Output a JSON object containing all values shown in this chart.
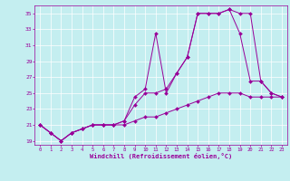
{
  "xlabel": "Windchill (Refroidissement éolien,°C)",
  "bg_color": "#c4eef0",
  "line_color": "#990099",
  "grid_color": "#ffffff",
  "xlim": [
    -0.5,
    23.5
  ],
  "ylim": [
    18.5,
    36.0
  ],
  "yticks": [
    19,
    21,
    23,
    25,
    27,
    29,
    31,
    33,
    35
  ],
  "xticks": [
    0,
    1,
    2,
    3,
    4,
    5,
    6,
    7,
    8,
    9,
    10,
    11,
    12,
    13,
    14,
    15,
    16,
    17,
    18,
    19,
    20,
    21,
    22,
    23
  ],
  "line1_x": [
    0,
    1,
    2,
    3,
    4,
    5,
    6,
    7,
    8,
    9,
    10,
    11,
    12,
    13,
    14,
    15,
    16,
    17,
    18,
    19,
    20,
    21,
    22,
    23
  ],
  "line1_y": [
    21,
    20,
    19,
    20,
    20.5,
    21,
    21,
    21,
    21.5,
    24.5,
    25.5,
    32.5,
    25,
    27.5,
    29.5,
    35,
    35,
    35,
    35.5,
    35,
    35,
    26.5,
    25,
    24.5
  ],
  "line2_x": [
    0,
    1,
    2,
    3,
    4,
    5,
    6,
    7,
    8,
    9,
    10,
    11,
    12,
    13,
    14,
    15,
    16,
    17,
    18,
    19,
    20,
    21,
    22,
    23
  ],
  "line2_y": [
    21,
    20,
    19,
    20,
    20.5,
    21,
    21,
    21,
    21.5,
    23.5,
    25,
    25,
    25.5,
    27.5,
    29.5,
    35,
    35,
    35,
    35.5,
    32.5,
    26.5,
    26.5,
    25,
    24.5
  ],
  "line3_x": [
    0,
    1,
    2,
    3,
    4,
    5,
    6,
    7,
    8,
    9,
    10,
    11,
    12,
    13,
    14,
    15,
    16,
    17,
    18,
    19,
    20,
    21,
    22,
    23
  ],
  "line3_y": [
    21,
    20,
    19,
    20,
    20.5,
    21,
    21,
    21,
    21,
    21.5,
    22,
    22,
    22.5,
    23,
    23.5,
    24,
    24.5,
    25,
    25,
    25,
    24.5,
    24.5,
    24.5,
    24.5
  ]
}
